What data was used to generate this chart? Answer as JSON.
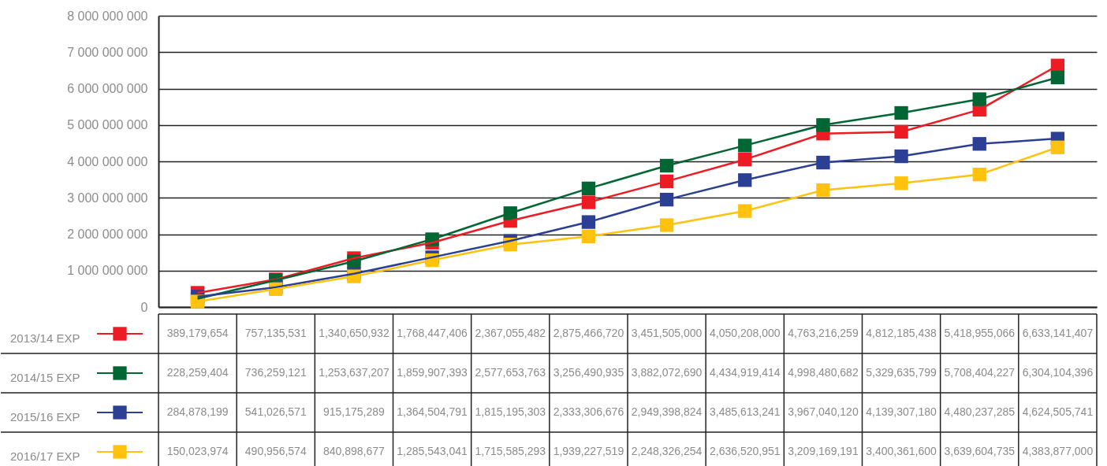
{
  "chart_data": {
    "type": "line",
    "categories": [
      null,
      null,
      null,
      null,
      null,
      null,
      null,
      null,
      null,
      null,
      null,
      null
    ],
    "series": [
      {
        "name": "2013/14 EXP",
        "color": "#ed1c24",
        "values": [
          389179654,
          757135531,
          1340650932,
          1768447406,
          2367055482,
          2875466720,
          3451505000,
          4050208000,
          4763216259,
          4812185438,
          5418955066,
          6633141407
        ],
        "value_labels": [
          "389,179,654",
          "757,135,531",
          "1,340,650,932",
          "1,768,447,406",
          "2,367,055,482",
          "2,875,466,720",
          "3,451,505,000",
          "4,050,208,000",
          "4,763,216,259",
          "4,812,185,438",
          "5,418,955,066",
          "6,633,141,407"
        ]
      },
      {
        "name": "2014/15 EXP",
        "color": "#006633",
        "values": [
          228259404,
          736259121,
          1253637207,
          1859907393,
          2577653763,
          3256490935,
          3882072690,
          4434919414,
          4998480682,
          5329635799,
          5708404227,
          6304104396
        ],
        "value_labels": [
          "228,259,404",
          "736,259,121",
          "1,253,637,207",
          "1,859,907,393",
          "2,577,653,763",
          "3,256,490,935",
          "3,882,072,690",
          "4,434,919,414",
          "4,998,480,682",
          "5,329,635,799",
          "5,708,404,227",
          "6,304,104,396"
        ]
      },
      {
        "name": "2015/16 EXP",
        "color": "#2b3f94",
        "values": [
          284878199,
          541026571,
          915175289,
          1364504791,
          1815195303,
          2333306676,
          2949398824,
          3485613241,
          3967040120,
          4139307180,
          4480237285,
          4624505741
        ],
        "value_labels": [
          "284,878,199",
          "541,026,571",
          "915,175,289",
          "1,364,504,791",
          "1,815,195,303",
          "2,333,306,676",
          "2,949,398,824",
          "3,485,613,241",
          "3,967,040,120",
          "4,139,307,180",
          "4,480,237,285",
          "4,624,505,741"
        ]
      },
      {
        "name": "2016/17 EXP",
        "color": "#ffc20e",
        "values": [
          150023974,
          490956574,
          840898677,
          1285543041,
          1715585293,
          1939227519,
          2248326254,
          2636520951,
          3209169191,
          3400361600,
          3639604735,
          4383877000
        ],
        "value_labels": [
          "150,023,974",
          "490,956,574",
          "840,898,677",
          "1,285,543,041",
          "1,715,585,293",
          "1,939,227,519",
          "2,248,326,254",
          "2,636,520,951",
          "3,209,169,191",
          "3,400,361,600",
          "3,639,604,735",
          "4,383,877,000"
        ]
      }
    ],
    "ylim": [
      0,
      8000000000
    ],
    "yticks": [
      0,
      {
        "value": 1000000000,
        "label": "1 000 000 000"
      },
      {
        "value": 2000000000,
        "label": "2 000 000 000"
      },
      {
        "value": 3000000000,
        "label": "3 000 000 000"
      },
      {
        "value": 4000000000,
        "label": "4 000 000 000"
      },
      {
        "value": 5000000000,
        "label": "5 000 000 000"
      },
      {
        "value": 6000000000,
        "label": "6 000 000 000"
      },
      {
        "value": 7000000000,
        "label": "7 000 000 000"
      },
      {
        "value": 8000000000,
        "label": "8 000 000 000"
      }
    ],
    "grid": "y",
    "legend": "left",
    "marker": "square",
    "line_style": "solid",
    "tick_labels": "y"
  }
}
